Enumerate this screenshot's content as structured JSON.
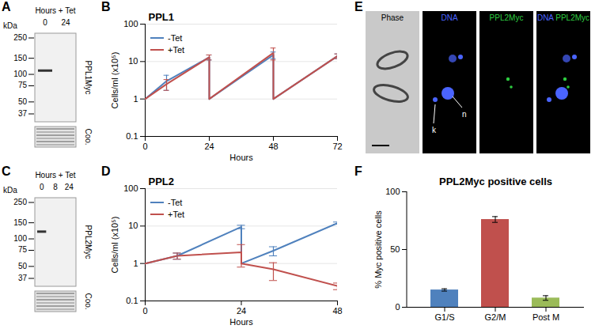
{
  "chart_data": [
    {
      "panel": "B",
      "type": "line",
      "title": "PPL1",
      "x_label": "Hours",
      "y_label": "Cells/ml (x10⁵)",
      "xlim": [
        0,
        72
      ],
      "xticks": [
        0,
        24,
        48,
        72
      ],
      "ylim": [
        0.1,
        100
      ],
      "yticks": [
        0.1,
        1,
        10,
        100
      ],
      "log": "y",
      "grid": true,
      "legend": "top-left",
      "series": [
        {
          "name": "-Tet",
          "color": "#4f81bd",
          "x": [
            0,
            8,
            24,
            24,
            48,
            48,
            72
          ],
          "values": [
            1,
            3,
            13,
            1,
            15,
            1,
            14
          ],
          "errors": [
            null,
            1.3,
            2,
            null,
            3,
            null,
            2
          ]
        },
        {
          "name": "+Tet",
          "color": "#c0504d",
          "x": [
            0,
            8,
            24,
            24,
            48,
            48,
            72
          ],
          "values": [
            1,
            2.5,
            13,
            1,
            17,
            1,
            14
          ],
          "errors": [
            null,
            0.8,
            2,
            null,
            6,
            null,
            2
          ]
        }
      ]
    },
    {
      "panel": "D",
      "type": "line",
      "title": "PPL2",
      "x_label": "Hours",
      "y_label": "Cells/ml (x10⁵)",
      "xlim": [
        0,
        48
      ],
      "xticks": [
        0,
        24,
        48
      ],
      "ylim": [
        0.1,
        100
      ],
      "yticks": [
        0.1,
        1,
        10,
        100
      ],
      "log": "y",
      "grid": true,
      "legend": "top-left",
      "series": [
        {
          "name": "-Tet",
          "color": "#4f81bd",
          "x": [
            0,
            8,
            24,
            24,
            32,
            48
          ],
          "values": [
            1,
            1.6,
            9.5,
            1,
            2.2,
            12
          ],
          "errors": [
            null,
            0.3,
            1,
            null,
            0.6,
            0.8
          ]
        },
        {
          "name": "+Tet",
          "color": "#c0504d",
          "x": [
            0,
            8,
            24,
            24,
            32,
            48
          ],
          "values": [
            1,
            1.6,
            2,
            1,
            0.7,
            0.25
          ],
          "errors": [
            null,
            0.3,
            1.2,
            null,
            0.35,
            0.05
          ]
        }
      ]
    },
    {
      "panel": "F",
      "type": "bar",
      "title": "PPL2Myc positive cells",
      "y_label": "% Myc positive cells",
      "categories": [
        "G1/S",
        "G2/M",
        "Post M"
      ],
      "values": [
        15,
        76,
        8
      ],
      "errors": [
        1,
        2.5,
        2
      ],
      "colors": [
        "#4f81bd",
        "#c0504d",
        "#9bbb59"
      ],
      "ylim": [
        0,
        100
      ],
      "yticks": [
        0,
        50,
        100
      ]
    }
  ],
  "blots": [
    {
      "panel": "A",
      "header": "Hours + Tet",
      "unit": "kDa",
      "lanes": [
        "0",
        "24"
      ],
      "markers": [
        250,
        150,
        100,
        75,
        50,
        37
      ],
      "antibody": "PPL1Myc",
      "loading": "Coo.",
      "bands": [
        {
          "lane": "0",
          "kDa": 110
        }
      ]
    },
    {
      "panel": "C",
      "header": "Hours + Tet",
      "unit": "kDa",
      "lanes": [
        "0",
        "8",
        "24"
      ],
      "markers": [
        250,
        150,
        100,
        75,
        50,
        37
      ],
      "antibody": "PPL2Myc",
      "loading": "Coo.",
      "bands": [
        {
          "lane": "0",
          "kDa": 120
        }
      ]
    }
  ],
  "microscopy": {
    "panel": "E",
    "channels": [
      {
        "label": "Phase"
      },
      {
        "label": "DNA",
        "color": "#4a64ff"
      },
      {
        "label": "PPL2Myc",
        "color": "#2ecc40"
      },
      {
        "labels": [
          "DNA",
          "PPL2Myc"
        ]
      }
    ],
    "arrows": [
      "k",
      "n"
    ]
  }
}
